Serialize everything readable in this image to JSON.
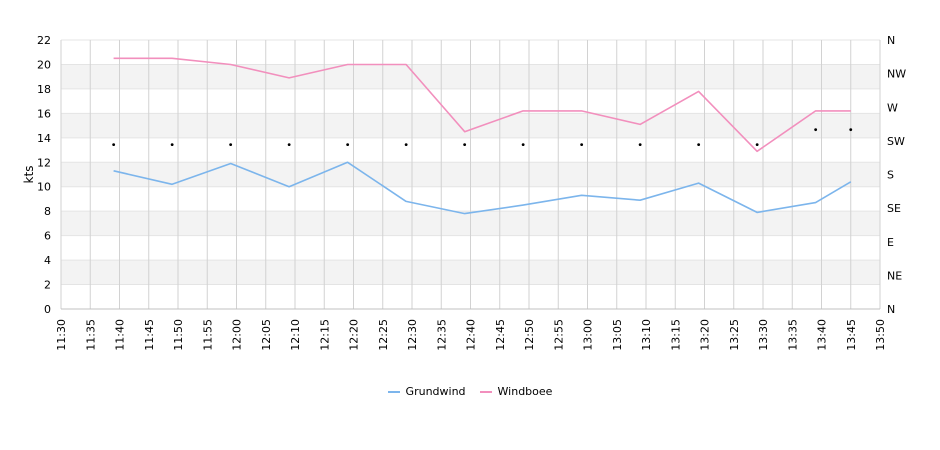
{
  "chart_data": {
    "type": "line",
    "title": "",
    "xlabel": "",
    "ylabel": "kts",
    "x_ticks": [
      "11:30",
      "11:35",
      "11:40",
      "11:45",
      "11:50",
      "11:55",
      "12:00",
      "12:05",
      "12:10",
      "12:15",
      "12:20",
      "12:25",
      "12:30",
      "12:35",
      "12:40",
      "12:45",
      "12:50",
      "12:55",
      "13:00",
      "13:05",
      "13:10",
      "13:15",
      "13:20",
      "13:25",
      "13:30",
      "13:35",
      "13:40",
      "13:45",
      "13:50"
    ],
    "xlim": [
      "11:30",
      "13:50"
    ],
    "ylim": [
      0,
      22
    ],
    "y_ticks": [
      0,
      2,
      4,
      6,
      8,
      10,
      12,
      14,
      16,
      18,
      20,
      22
    ],
    "y2_ticks": [
      "N",
      "NE",
      "E",
      "SE",
      "S",
      "SW",
      "W",
      "NW",
      "N"
    ],
    "y2_range": [
      0,
      360
    ],
    "grid": true,
    "banded_background": true,
    "legend_position": "bottom-center",
    "series": [
      {
        "name": "Grundwind",
        "color": "#7cb5ec",
        "x": [
          "11:39",
          "11:49",
          "11:59",
          "12:09",
          "12:19",
          "12:29",
          "12:39",
          "12:49",
          "12:59",
          "13:09",
          "13:19",
          "13:29",
          "13:39",
          "13:45"
        ],
        "values": [
          11.3,
          10.2,
          11.9,
          10.0,
          12.0,
          8.8,
          7.8,
          8.5,
          9.3,
          8.9,
          10.3,
          7.9,
          8.7,
          10.4
        ]
      },
      {
        "name": "Windboee",
        "color": "#f28fbd",
        "x": [
          "11:39",
          "11:49",
          "11:59",
          "12:09",
          "12:19",
          "12:29",
          "12:39",
          "12:49",
          "12:59",
          "13:09",
          "13:19",
          "13:29",
          "13:39",
          "13:45"
        ],
        "values": [
          20.5,
          20.5,
          20.0,
          18.9,
          20.0,
          20.0,
          14.5,
          16.2,
          16.2,
          15.1,
          17.8,
          12.9,
          16.2,
          16.2
        ]
      }
    ],
    "direction_points": {
      "x": [
        "11:39",
        "11:49",
        "11:59",
        "12:09",
        "12:19",
        "12:29",
        "12:39",
        "12:49",
        "12:59",
        "13:09",
        "13:19",
        "13:29",
        "13:39",
        "13:45"
      ],
      "degrees": [
        220,
        220,
        220,
        220,
        220,
        220,
        220,
        220,
        220,
        220,
        220,
        220,
        240,
        240
      ]
    }
  }
}
